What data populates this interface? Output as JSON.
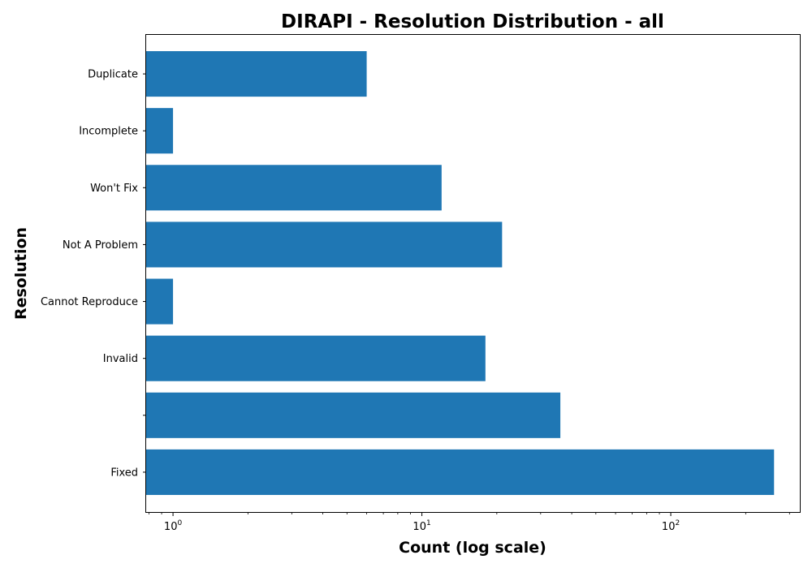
{
  "chart_data": {
    "type": "bar",
    "orientation": "horizontal",
    "title": "DIRAPI - Resolution Distribution - all",
    "xlabel": "Count (log scale)",
    "ylabel": "Resolution",
    "x_scale": "log",
    "xlim": [
      0.78,
      330
    ],
    "x_ticks": [
      {
        "value": 1,
        "base": "10",
        "exp": "0"
      },
      {
        "value": 10,
        "base": "10",
        "exp": "1"
      },
      {
        "value": 100,
        "base": "10",
        "exp": "2"
      }
    ],
    "categories": [
      "Fixed",
      "",
      "Invalid",
      "Cannot Reproduce",
      "Not A Problem",
      "Won't Fix",
      "Incomplete",
      "Duplicate"
    ],
    "values": [
      260,
      36,
      18,
      1,
      21,
      12,
      1,
      6
    ],
    "colors": {
      "bar": "#1f77b4",
      "axis": "#000000"
    },
    "grid": false
  }
}
